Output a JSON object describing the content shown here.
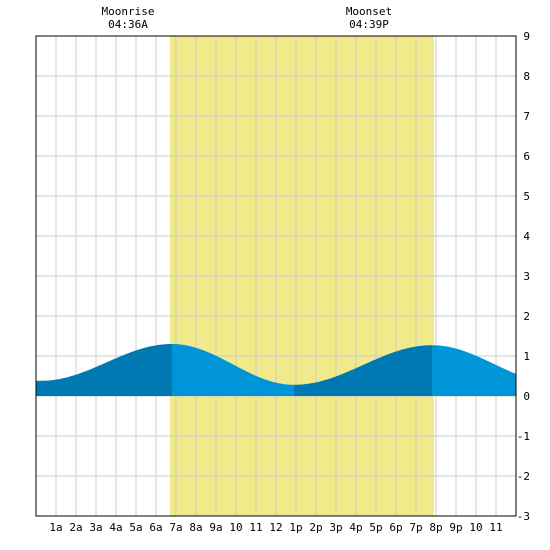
{
  "chart_data": {
    "type": "area",
    "title": "",
    "xlabel": "",
    "ylabel": "",
    "x_range_hours": [
      0,
      24
    ],
    "ylim": [
      -3,
      9
    ],
    "y_ticks": [
      -3,
      -2,
      -1,
      0,
      1,
      2,
      3,
      4,
      5,
      6,
      7,
      8,
      9
    ],
    "x_tick_labels": [
      "1a",
      "2a",
      "3a",
      "4a",
      "5a",
      "6a",
      "7a",
      "8a",
      "9a",
      "10",
      "11",
      "12",
      "1p",
      "2p",
      "3p",
      "4p",
      "5p",
      "6p",
      "7p",
      "8p",
      "9p",
      "10",
      "11"
    ],
    "grid": true,
    "moon_window": {
      "start_hour": 6.7,
      "end_hour": 19.9
    },
    "annotations": [
      {
        "title": "Moonrise",
        "time": "04:36A",
        "hour": 4.6
      },
      {
        "title": "Moonset",
        "time": "04:39P",
        "hour": 16.65
      }
    ],
    "tide_extremes": [
      {
        "hour": 0.25,
        "value": 0.38,
        "type": "low"
      },
      {
        "hour": 6.8,
        "value": 1.3,
        "type": "high"
      },
      {
        "hour": 12.9,
        "value": 0.28,
        "type": "low"
      },
      {
        "hour": 19.8,
        "value": 1.27,
        "type": "high"
      },
      {
        "hour": 26.0,
        "value": 0.33,
        "type": "low"
      }
    ],
    "colors": {
      "moon_band": "#f0ea8a",
      "tide_light": "#0095d9",
      "tide_dark": "#0079b3",
      "grid": "#cccccc",
      "background": "#ffffff"
    }
  }
}
